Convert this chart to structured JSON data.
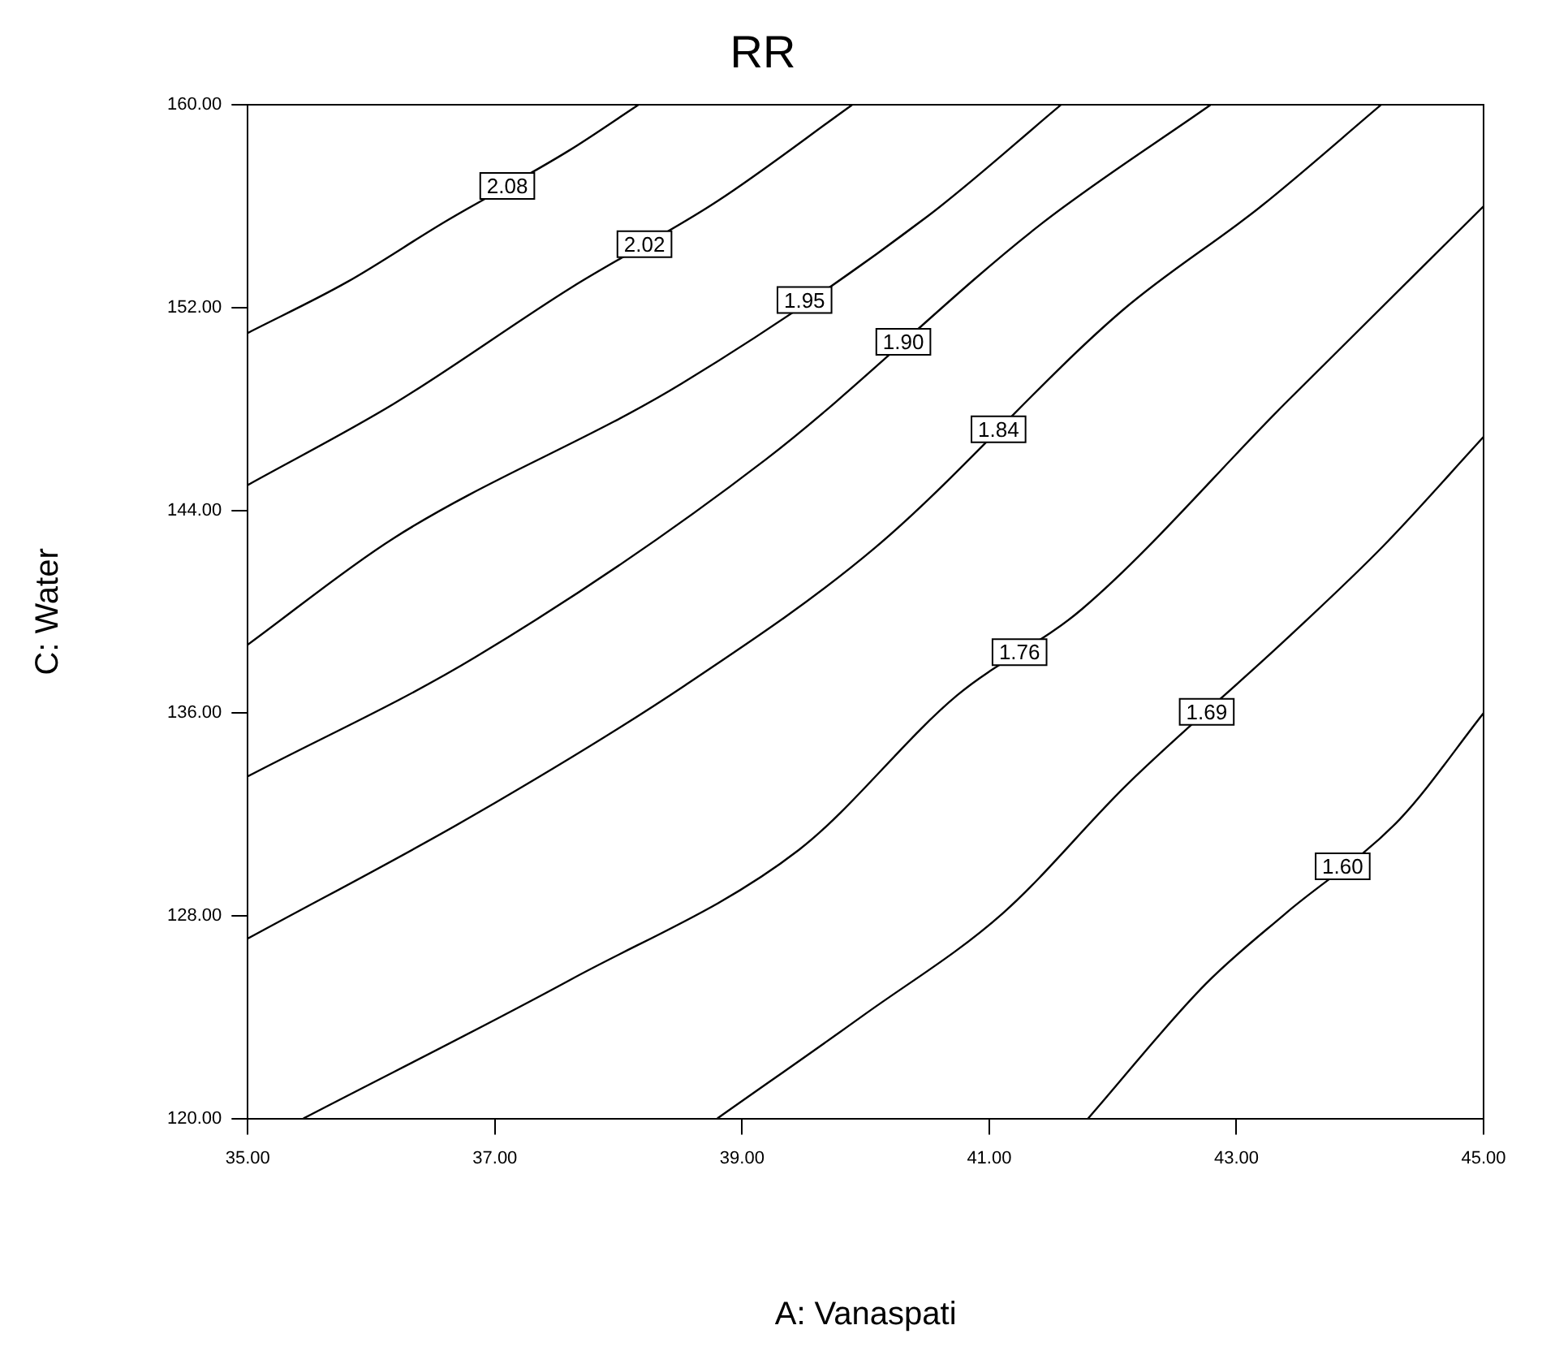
{
  "chart_data": {
    "type": "line",
    "title": "RR",
    "xlabel": "A: Vanaspati",
    "ylabel": "C: Water",
    "xlim": [
      35,
      45
    ],
    "xticks": [
      {
        "value": 35,
        "label": "35.00"
      },
      {
        "value": 37,
        "label": "37.00"
      },
      {
        "value": 39,
        "label": "39.00"
      },
      {
        "value": 41,
        "label": "41.00"
      },
      {
        "value": 43,
        "label": "43.00"
      },
      {
        "value": 45,
        "label": "45.00"
      }
    ],
    "ylim": [
      120,
      160
    ],
    "yticks": [
      {
        "value": 120,
        "label": "120.00"
      },
      {
        "value": 128,
        "label": "128.00"
      },
      {
        "value": 136,
        "label": "136.00"
      },
      {
        "value": 144,
        "label": "144.00"
      },
      {
        "value": 152,
        "label": "152.00"
      },
      {
        "value": 160,
        "label": "160.00"
      }
    ],
    "grid": false,
    "legend": false,
    "marker": "none",
    "line_style": "solid",
    "series": [
      {
        "name": "2.08",
        "color": "#000000",
        "x": [
          35,
          35.8,
          36.6,
          37.6,
          38.16
        ],
        "values": [
          151.0,
          153.0,
          155.4,
          158.2,
          160
        ]
      },
      {
        "name": "2.02",
        "color": "#000000",
        "x": [
          35,
          36.18,
          37.62,
          38.8,
          39.89
        ],
        "values": [
          145.0,
          148.2,
          152.8,
          156.2,
          160
        ]
      },
      {
        "name": "1.95",
        "color": "#000000",
        "x": [
          35,
          36.18,
          38.51,
          40.5,
          41.58
        ],
        "values": [
          138.7,
          142.9,
          149.0,
          155.6,
          160
        ]
      },
      {
        "name": "1.90",
        "color": "#000000",
        "x": [
          35,
          36.84,
          39.19,
          41.42,
          42.79
        ],
        "values": [
          133.5,
          138.2,
          146.0,
          155.3,
          160
        ]
      },
      {
        "name": "1.84",
        "color": "#000000",
        "x": [
          35,
          36.84,
          38.54,
          40.07,
          42.08,
          43.2,
          44.17
        ],
        "values": [
          127.1,
          132.0,
          137.1,
          142.5,
          151.9,
          156.0,
          160
        ]
      },
      {
        "name": "1.76",
        "color": "#000000",
        "x": [
          35.45,
          37.62,
          39.46,
          40.74,
          41.75,
          43.39,
          45
        ],
        "values": [
          120,
          125.5,
          130.6,
          136.7,
          140.1,
          148.2,
          156.0
        ]
      },
      {
        "name": "1.69",
        "color": "#000000",
        "x": [
          38.8,
          39.99,
          41.11,
          42.12,
          43.4,
          44.19,
          45
        ],
        "values": [
          120,
          124.1,
          128.1,
          133.2,
          138.9,
          142.6,
          146.9
        ]
      },
      {
        "name": "1.60",
        "color": "#000000",
        "x": [
          41.8,
          42.75,
          43.4,
          44.32,
          45
        ],
        "values": [
          120,
          125.3,
          128.1,
          131.8,
          136.0
        ]
      }
    ]
  }
}
